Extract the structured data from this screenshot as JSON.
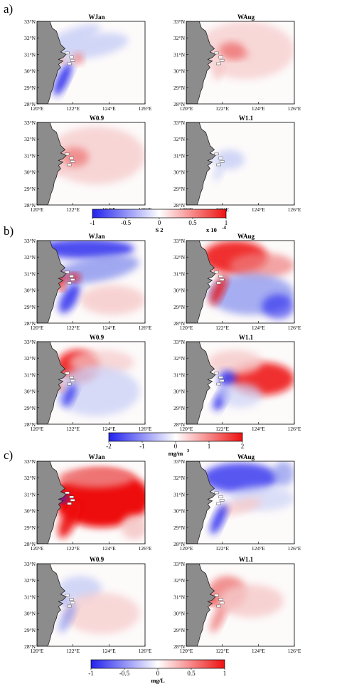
{
  "figure": {
    "panels": [
      {
        "letter": "a)",
        "maps": [
          {
            "title": "WJan",
            "pattern": "a_jan"
          },
          {
            "title": "WAug",
            "pattern": "a_aug"
          },
          {
            "title": "W0.9",
            "pattern": "a_09"
          },
          {
            "title": "W1.1",
            "pattern": "a_11"
          }
        ],
        "colorbar": {
          "ticks": [
            "-1",
            "-0.5",
            "0",
            "0.5",
            "1"
          ],
          "unit": "S 2",
          "extra": "x 10",
          "exponent": "-4"
        }
      },
      {
        "letter": "b)",
        "maps": [
          {
            "title": "WJan",
            "pattern": "b_jan"
          },
          {
            "title": "WAug",
            "pattern": "b_aug"
          },
          {
            "title": "W0.9",
            "pattern": "b_09"
          },
          {
            "title": "W1.1",
            "pattern": "b_11"
          }
        ],
        "colorbar": {
          "ticks": [
            "-2",
            "-1",
            "0",
            "1",
            "2"
          ],
          "unit": "mg/m",
          "unit_sup": "3",
          "extra": "",
          "exponent": ""
        }
      },
      {
        "letter": "c)",
        "maps": [
          {
            "title": "WJan",
            "pattern": "c_jan"
          },
          {
            "title": "WAug",
            "pattern": "c_aug"
          },
          {
            "title": "W0.9",
            "pattern": "c_09"
          },
          {
            "title": "W1.1",
            "pattern": "c_11"
          }
        ],
        "colorbar": {
          "ticks": [
            "-1",
            "-0.5",
            "0",
            "0.5",
            "1"
          ],
          "unit": "mg/L",
          "unit_sup": "",
          "extra": "",
          "exponent": ""
        }
      }
    ],
    "lat_ticks": [
      "33°N",
      "32°N",
      "31°N",
      "30°N",
      "29°N",
      "28°N"
    ],
    "lon_ticks": [
      "120°E",
      "122°E",
      "124°E",
      "126°E"
    ],
    "colors": {
      "negative": "#2222ee",
      "zero": "#ffffff",
      "positive": "#ee1111",
      "land": "#8c8c8c"
    }
  }
}
